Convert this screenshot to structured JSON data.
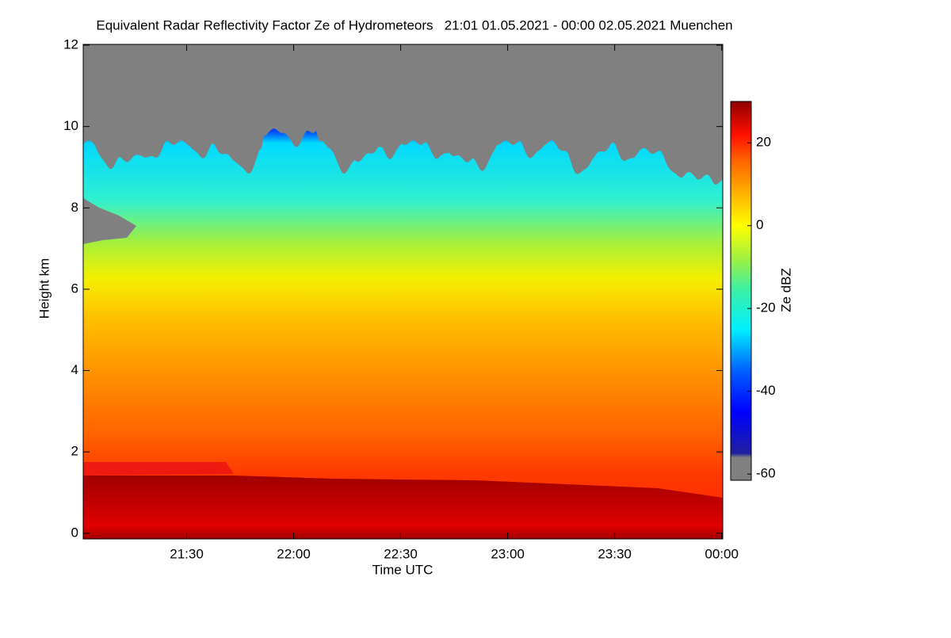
{
  "chart_data": {
    "type": "heatmap",
    "title": "Equivalent Radar Reflectivity Factor Ze of Hydrometeors   21:01 01.05.2021 - 00:00 02.05.2021 Muenchen",
    "xlabel": "Time UTC",
    "ylabel": "Height km",
    "colorbar_label": "Ze dBZ",
    "xlim": [
      21.0167,
      24.005
    ],
    "xticks": [
      {
        "value": 21.5,
        "label": "21:30"
      },
      {
        "value": 22.0,
        "label": "22:00"
      },
      {
        "value": 22.5,
        "label": "22:30"
      },
      {
        "value": 23.0,
        "label": "23:00"
      },
      {
        "value": 23.5,
        "label": "23:30"
      },
      {
        "value": 24.0,
        "label": "00:00"
      }
    ],
    "ylim": [
      -0.14,
      12.02
    ],
    "yticks": [
      0,
      2,
      4,
      6,
      8,
      10,
      12
    ],
    "clim": [
      -61.5,
      30
    ],
    "cticks": [
      -60,
      -40,
      -20,
      0,
      20
    ],
    "colormap": [
      {
        "value": -61.5,
        "color": "#808080"
      },
      {
        "value": -56,
        "color": "#808080"
      },
      {
        "value": -55,
        "color": "#2020a0"
      },
      {
        "value": -45,
        "color": "#0000ff"
      },
      {
        "value": -35,
        "color": "#0060ff"
      },
      {
        "value": -25,
        "color": "#00f0ff"
      },
      {
        "value": -15,
        "color": "#40f0a0"
      },
      {
        "value": -8,
        "color": "#a0f040"
      },
      {
        "value": 0,
        "color": "#ffff00"
      },
      {
        "value": 8,
        "color": "#ffb000"
      },
      {
        "value": 16,
        "color": "#ff6000"
      },
      {
        "value": 22,
        "color": "#ff1000"
      },
      {
        "value": 30,
        "color": "#900000"
      }
    ]
  }
}
